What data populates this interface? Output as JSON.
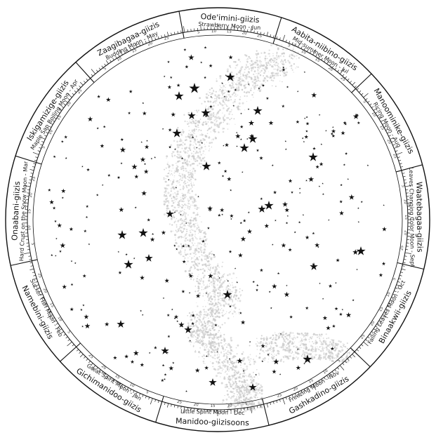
{
  "months": [
    {
      "name": "Ode'imini-giizis",
      "sub": "Strawberry Moon - Jun"
    },
    {
      "name": "Aabita-niibino-giizis",
      "sub": "Mid-summer Moon - Jul"
    },
    {
      "name": "Manoominike-giizis",
      "sub": "Ricing Moon - Aug"
    },
    {
      "name": "Waatebagaa-giizis",
      "sub": "Leaves Changing Color Moon - Sept"
    },
    {
      "name": "Binaakwii-giizis",
      "sub": "Falling Leaves Moon - Oct"
    },
    {
      "name": "Gashkadino-giizis",
      "sub": "Freezing Moon - Nov"
    },
    {
      "name": "Manidoo-giizisoons",
      "sub": "Little Spirit Moon - Dec"
    },
    {
      "name": "Gichimanidoo-giizis",
      "sub": "Great Spirit Moon - Jan"
    },
    {
      "name": "Namebini-giizis",
      "sub": "Sucker Fish Moon - Feb"
    },
    {
      "name": "Onaabani-giizis",
      "sub": "Hard Crust on the Snow Moon - Mar"
    },
    {
      "name": "Iskigamizige-giizis",
      "sub": "Maple Sap Boiling Moon - Apr"
    },
    {
      "name": "Zaagibagaa-giizis",
      "sub": "Budding Moon - May"
    }
  ],
  "colors": {
    "ink": "#111111",
    "milky_way": "#c9c9c9",
    "background": "#ffffff"
  }
}
